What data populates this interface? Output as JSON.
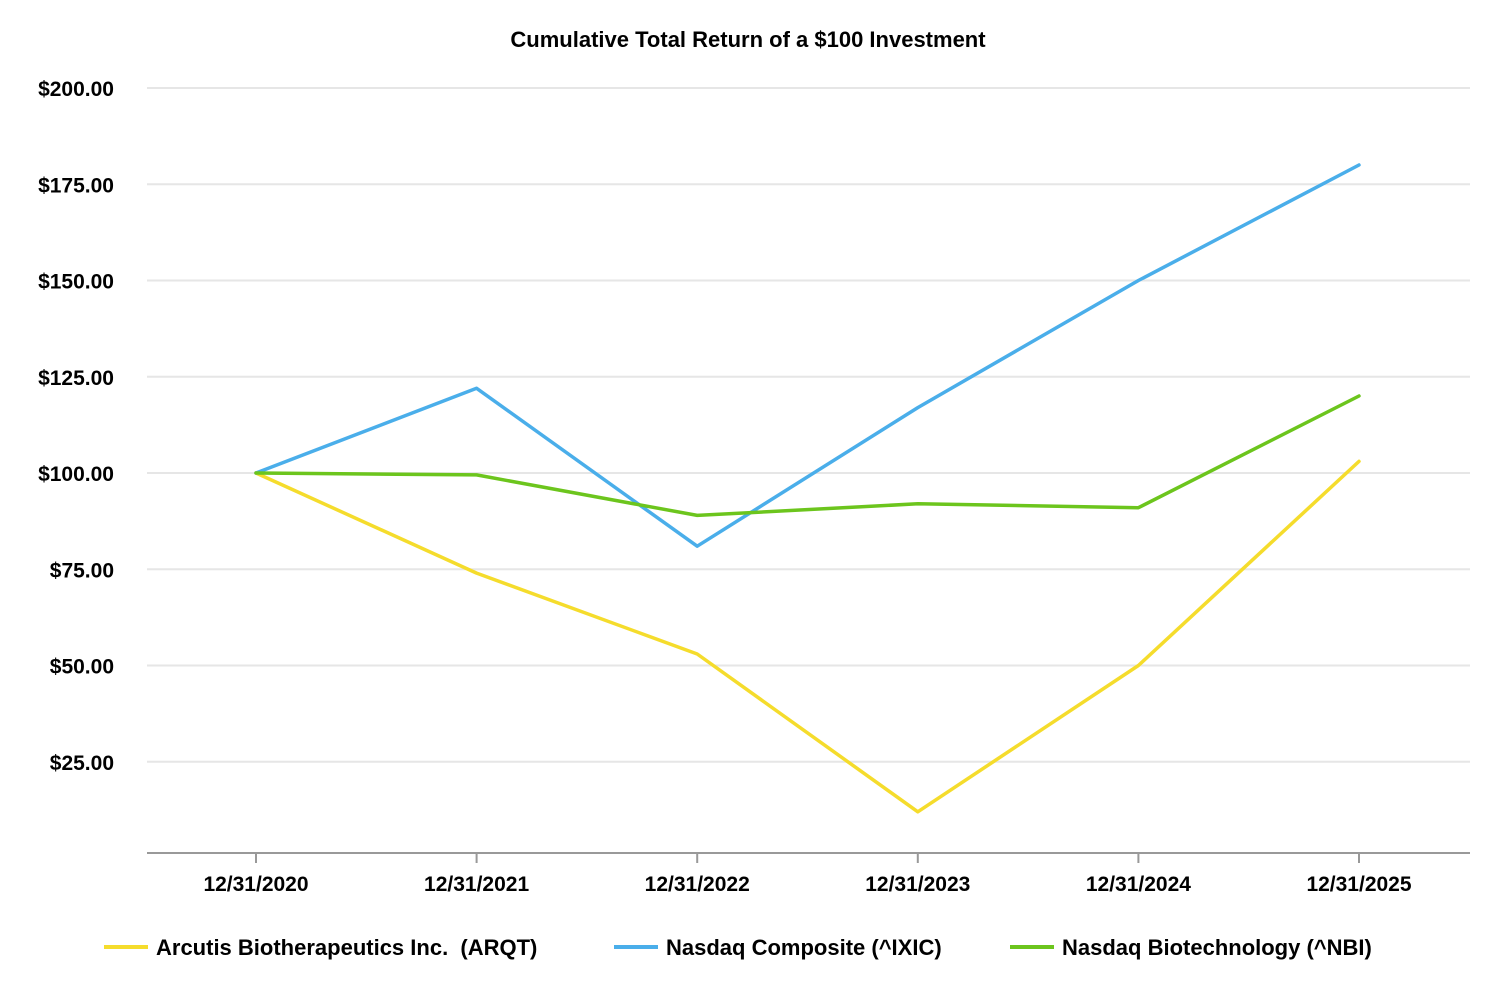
{
  "chart_data": {
    "type": "line",
    "title": "Cumulative Total Return of a $100 Investment",
    "xlabel": "",
    "ylabel": "",
    "categories": [
      "12/31/2020",
      "12/31/2021",
      "12/31/2022",
      "12/31/2023",
      "12/31/2024",
      "12/31/2025"
    ],
    "y_ticks": [
      "$25.00",
      "$50.00",
      "$75.00",
      "$100.00",
      "$125.00",
      "$150.00",
      "$175.00",
      "$200.00"
    ],
    "y_tick_values": [
      25,
      50,
      75,
      100,
      125,
      150,
      175,
      200
    ],
    "ylim": [
      0,
      200
    ],
    "grid": true,
    "legend_position": "bottom",
    "series": [
      {
        "name": "Arcutis Biotherapeutics Inc.  (ARQT)",
        "color": "#f5dc2c",
        "values": [
          100.0,
          74.0,
          53.0,
          12.0,
          50.0,
          103.0
        ]
      },
      {
        "name": "Nasdaq Composite (^IXIC)",
        "color": "#4aaeea",
        "values": [
          100.0,
          122.0,
          81.0,
          117.0,
          150.0,
          180.0
        ]
      },
      {
        "name": "Nasdaq Biotechnology (^NBI)",
        "color": "#6cc51d",
        "values": [
          100.0,
          99.5,
          89.0,
          92.0,
          91.0,
          120.0
        ]
      }
    ]
  }
}
